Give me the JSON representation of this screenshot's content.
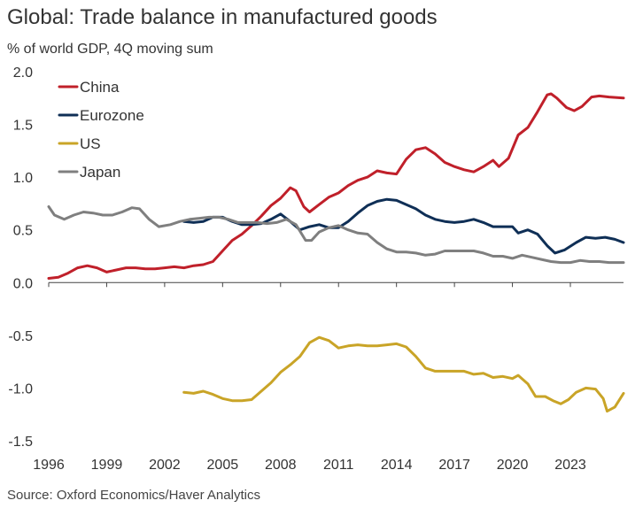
{
  "title": "Global: Trade balance in manufactured goods",
  "subtitle": "% of world GDP, 4Q moving sum",
  "source": "Source: Oxford Economics/Haver Analytics",
  "chart_data": {
    "type": "line",
    "title": "Global: Trade balance in manufactured goods",
    "subtitle": "% of world GDP, 4Q moving sum",
    "xlabel": "",
    "ylabel": "",
    "xlim": [
      1996,
      2025.75
    ],
    "ylim": [
      -1.5,
      2.0
    ],
    "x_ticks": [
      "1996",
      "1999",
      "2002",
      "2005",
      "2008",
      "2011",
      "2014",
      "2017",
      "2020",
      "2023"
    ],
    "y_ticks": [
      "2.0",
      "1.5",
      "1.0",
      "0.5",
      "0.0",
      "-0.5",
      "-1.0",
      "-1.5"
    ],
    "grid": false,
    "legend_position": "top-left",
    "series": [
      {
        "name": "China",
        "color": "#c0202a",
        "points": [
          [
            1996.0,
            0.04
          ],
          [
            1996.5,
            0.05
          ],
          [
            1997.0,
            0.09
          ],
          [
            1997.5,
            0.14
          ],
          [
            1998.0,
            0.16
          ],
          [
            1998.5,
            0.14
          ],
          [
            1999.0,
            0.1
          ],
          [
            1999.5,
            0.12
          ],
          [
            2000.0,
            0.14
          ],
          [
            2000.5,
            0.14
          ],
          [
            2001.0,
            0.13
          ],
          [
            2001.5,
            0.13
          ],
          [
            2002.0,
            0.14
          ],
          [
            2002.5,
            0.15
          ],
          [
            2003.0,
            0.14
          ],
          [
            2003.5,
            0.16
          ],
          [
            2004.0,
            0.17
          ],
          [
            2004.5,
            0.2
          ],
          [
            2005.0,
            0.3
          ],
          [
            2005.5,
            0.4
          ],
          [
            2006.0,
            0.46
          ],
          [
            2006.5,
            0.54
          ],
          [
            2007.0,
            0.63
          ],
          [
            2007.5,
            0.73
          ],
          [
            2008.0,
            0.8
          ],
          [
            2008.5,
            0.9
          ],
          [
            2008.8,
            0.87
          ],
          [
            2009.2,
            0.72
          ],
          [
            2009.5,
            0.67
          ],
          [
            2010.0,
            0.74
          ],
          [
            2010.5,
            0.81
          ],
          [
            2011.0,
            0.85
          ],
          [
            2011.5,
            0.92
          ],
          [
            2012.0,
            0.97
          ],
          [
            2012.5,
            1.0
          ],
          [
            2013.0,
            1.06
          ],
          [
            2013.5,
            1.04
          ],
          [
            2014.0,
            1.03
          ],
          [
            2014.5,
            1.17
          ],
          [
            2015.0,
            1.26
          ],
          [
            2015.5,
            1.28
          ],
          [
            2016.0,
            1.22
          ],
          [
            2016.5,
            1.14
          ],
          [
            2017.0,
            1.1
          ],
          [
            2017.5,
            1.07
          ],
          [
            2018.0,
            1.05
          ],
          [
            2018.5,
            1.1
          ],
          [
            2019.0,
            1.16
          ],
          [
            2019.3,
            1.1
          ],
          [
            2019.8,
            1.18
          ],
          [
            2020.3,
            1.4
          ],
          [
            2020.8,
            1.47
          ],
          [
            2021.3,
            1.62
          ],
          [
            2021.8,
            1.78
          ],
          [
            2022.0,
            1.79
          ],
          [
            2022.3,
            1.75
          ],
          [
            2022.8,
            1.66
          ],
          [
            2023.2,
            1.63
          ],
          [
            2023.6,
            1.67
          ],
          [
            2024.1,
            1.76
          ],
          [
            2024.5,
            1.77
          ],
          [
            2025.0,
            1.76
          ],
          [
            2025.75,
            1.75
          ]
        ]
      },
      {
        "name": "Eurozone",
        "color": "#0f2f56",
        "points": [
          [
            2003.0,
            0.58
          ],
          [
            2003.5,
            0.57
          ],
          [
            2004.0,
            0.58
          ],
          [
            2004.5,
            0.62
          ],
          [
            2005.0,
            0.62
          ],
          [
            2005.5,
            0.58
          ],
          [
            2006.0,
            0.55
          ],
          [
            2006.5,
            0.55
          ],
          [
            2007.0,
            0.56
          ],
          [
            2007.5,
            0.6
          ],
          [
            2008.0,
            0.65
          ],
          [
            2008.5,
            0.58
          ],
          [
            2009.0,
            0.5
          ],
          [
            2009.5,
            0.53
          ],
          [
            2010.0,
            0.55
          ],
          [
            2010.5,
            0.52
          ],
          [
            2011.0,
            0.52
          ],
          [
            2011.5,
            0.58
          ],
          [
            2012.0,
            0.66
          ],
          [
            2012.5,
            0.73
          ],
          [
            2013.0,
            0.77
          ],
          [
            2013.5,
            0.79
          ],
          [
            2014.0,
            0.78
          ],
          [
            2014.5,
            0.74
          ],
          [
            2015.0,
            0.7
          ],
          [
            2015.5,
            0.64
          ],
          [
            2016.0,
            0.6
          ],
          [
            2016.5,
            0.58
          ],
          [
            2017.0,
            0.57
          ],
          [
            2017.5,
            0.58
          ],
          [
            2018.0,
            0.6
          ],
          [
            2018.5,
            0.57
          ],
          [
            2019.0,
            0.53
          ],
          [
            2019.5,
            0.53
          ],
          [
            2020.0,
            0.53
          ],
          [
            2020.3,
            0.47
          ],
          [
            2020.8,
            0.5
          ],
          [
            2021.3,
            0.46
          ],
          [
            2021.8,
            0.35
          ],
          [
            2022.2,
            0.28
          ],
          [
            2022.7,
            0.31
          ],
          [
            2023.3,
            0.38
          ],
          [
            2023.8,
            0.43
          ],
          [
            2024.3,
            0.42
          ],
          [
            2024.8,
            0.43
          ],
          [
            2025.3,
            0.41
          ],
          [
            2025.75,
            0.38
          ]
        ]
      },
      {
        "name": "US",
        "color": "#c9a427",
        "points": [
          [
            2003.0,
            -1.04
          ],
          [
            2003.5,
            -1.05
          ],
          [
            2004.0,
            -1.03
          ],
          [
            2004.5,
            -1.06
          ],
          [
            2005.0,
            -1.1
          ],
          [
            2005.5,
            -1.12
          ],
          [
            2006.0,
            -1.12
          ],
          [
            2006.5,
            -1.11
          ],
          [
            2007.0,
            -1.03
          ],
          [
            2007.5,
            -0.95
          ],
          [
            2008.0,
            -0.85
          ],
          [
            2008.5,
            -0.78
          ],
          [
            2009.0,
            -0.7
          ],
          [
            2009.5,
            -0.57
          ],
          [
            2010.0,
            -0.52
          ],
          [
            2010.5,
            -0.55
          ],
          [
            2011.0,
            -0.62
          ],
          [
            2011.5,
            -0.6
          ],
          [
            2012.0,
            -0.59
          ],
          [
            2012.5,
            -0.6
          ],
          [
            2013.0,
            -0.6
          ],
          [
            2013.5,
            -0.59
          ],
          [
            2014.0,
            -0.58
          ],
          [
            2014.5,
            -0.61
          ],
          [
            2015.0,
            -0.7
          ],
          [
            2015.5,
            -0.81
          ],
          [
            2016.0,
            -0.84
          ],
          [
            2016.5,
            -0.84
          ],
          [
            2017.0,
            -0.84
          ],
          [
            2017.5,
            -0.84
          ],
          [
            2018.0,
            -0.87
          ],
          [
            2018.5,
            -0.86
          ],
          [
            2019.0,
            -0.9
          ],
          [
            2019.5,
            -0.89
          ],
          [
            2020.0,
            -0.91
          ],
          [
            2020.3,
            -0.88
          ],
          [
            2020.8,
            -0.96
          ],
          [
            2021.2,
            -1.08
          ],
          [
            2021.7,
            -1.08
          ],
          [
            2022.1,
            -1.12
          ],
          [
            2022.5,
            -1.15
          ],
          [
            2022.9,
            -1.11
          ],
          [
            2023.3,
            -1.04
          ],
          [
            2023.8,
            -1.0
          ],
          [
            2024.3,
            -1.01
          ],
          [
            2024.7,
            -1.1
          ],
          [
            2024.9,
            -1.22
          ],
          [
            2025.3,
            -1.18
          ],
          [
            2025.75,
            -1.05
          ]
        ]
      },
      {
        "name": "Japan",
        "color": "#7f7f7f",
        "points": [
          [
            1996.0,
            0.72
          ],
          [
            1996.3,
            0.64
          ],
          [
            1996.8,
            0.6
          ],
          [
            1997.3,
            0.64
          ],
          [
            1997.8,
            0.67
          ],
          [
            1998.3,
            0.66
          ],
          [
            1998.8,
            0.64
          ],
          [
            1999.3,
            0.64
          ],
          [
            1999.8,
            0.67
          ],
          [
            2000.3,
            0.71
          ],
          [
            2000.7,
            0.7
          ],
          [
            2001.2,
            0.6
          ],
          [
            2001.7,
            0.53
          ],
          [
            2002.3,
            0.55
          ],
          [
            2002.8,
            0.58
          ],
          [
            2003.3,
            0.6
          ],
          [
            2003.8,
            0.61
          ],
          [
            2004.3,
            0.62
          ],
          [
            2004.8,
            0.62
          ],
          [
            2005.3,
            0.6
          ],
          [
            2005.8,
            0.57
          ],
          [
            2006.3,
            0.57
          ],
          [
            2006.8,
            0.57
          ],
          [
            2007.3,
            0.56
          ],
          [
            2007.8,
            0.57
          ],
          [
            2008.3,
            0.6
          ],
          [
            2008.8,
            0.55
          ],
          [
            2009.3,
            0.4
          ],
          [
            2009.6,
            0.4
          ],
          [
            2010.0,
            0.48
          ],
          [
            2010.5,
            0.52
          ],
          [
            2011.0,
            0.54
          ],
          [
            2011.5,
            0.5
          ],
          [
            2012.0,
            0.47
          ],
          [
            2012.5,
            0.46
          ],
          [
            2013.0,
            0.38
          ],
          [
            2013.5,
            0.32
          ],
          [
            2014.0,
            0.29
          ],
          [
            2014.5,
            0.29
          ],
          [
            2015.0,
            0.28
          ],
          [
            2015.5,
            0.26
          ],
          [
            2016.0,
            0.27
          ],
          [
            2016.5,
            0.3
          ],
          [
            2017.0,
            0.3
          ],
          [
            2017.5,
            0.3
          ],
          [
            2018.0,
            0.3
          ],
          [
            2018.5,
            0.28
          ],
          [
            2019.0,
            0.25
          ],
          [
            2019.5,
            0.25
          ],
          [
            2020.0,
            0.23
          ],
          [
            2020.5,
            0.26
          ],
          [
            2021.0,
            0.24
          ],
          [
            2021.5,
            0.22
          ],
          [
            2022.0,
            0.2
          ],
          [
            2022.5,
            0.19
          ],
          [
            2023.0,
            0.19
          ],
          [
            2023.5,
            0.21
          ],
          [
            2024.0,
            0.2
          ],
          [
            2024.5,
            0.2
          ],
          [
            2025.0,
            0.19
          ],
          [
            2025.75,
            0.19
          ]
        ]
      }
    ]
  }
}
